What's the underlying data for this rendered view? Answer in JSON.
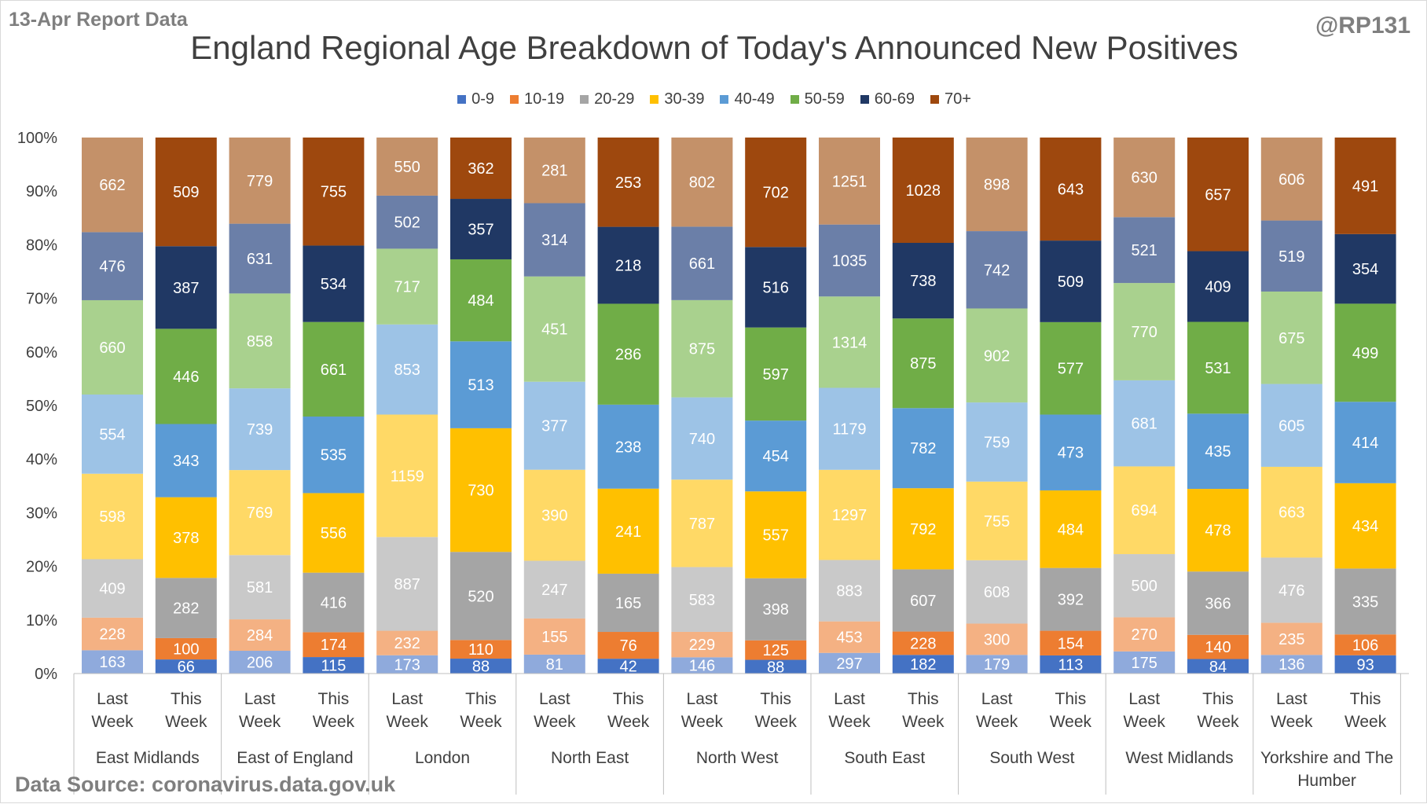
{
  "header": {
    "report_date": "13-Apr Report Data",
    "handle": "@RP131",
    "source": "Data Source: coronavirus.data.gov.uk"
  },
  "chart_data": {
    "type": "bar",
    "stacked": "percent",
    "title": "England Regional Age Breakdown of Today's Announced New Positives",
    "legend_position": "top",
    "y_ticks": [
      "0%",
      "10%",
      "20%",
      "30%",
      "40%",
      "50%",
      "60%",
      "70%",
      "80%",
      "90%",
      "100%"
    ],
    "ylim": [
      0,
      100
    ],
    "grid": false,
    "series": [
      {
        "name": "0-9",
        "color_this": "#4472c4",
        "color_last": "#8faadc"
      },
      {
        "name": "10-19",
        "color_this": "#ed7d31",
        "color_last": "#f4b183"
      },
      {
        "name": "20-29",
        "color_this": "#a5a5a5",
        "color_last": "#c9c9c9"
      },
      {
        "name": "30-39",
        "color_this": "#ffc000",
        "color_last": "#ffd966"
      },
      {
        "name": "40-49",
        "color_this": "#5b9bd5",
        "color_last": "#9dc3e6"
      },
      {
        "name": "50-59",
        "color_this": "#70ad47",
        "color_last": "#a9d18e"
      },
      {
        "name": "60-69",
        "color_this": "#203864",
        "color_last": "#6b7fa8"
      },
      {
        "name": "70+",
        "color_this": "#9e480e",
        "color_last": "#c49169"
      }
    ],
    "groups": [
      {
        "region": "East Midlands",
        "bars": [
          {
            "label": [
              "Last",
              "Week"
            ],
            "period": "last",
            "values": [
              163,
              228,
              409,
              598,
              554,
              660,
              476,
              662
            ]
          },
          {
            "label": [
              "This",
              "Week"
            ],
            "period": "this",
            "values": [
              66,
              100,
              282,
              378,
              343,
              446,
              387,
              509
            ]
          }
        ]
      },
      {
        "region": "East of England",
        "bars": [
          {
            "label": [
              "Last",
              "Week"
            ],
            "period": "last",
            "values": [
              206,
              284,
              581,
              769,
              739,
              858,
              631,
              779
            ]
          },
          {
            "label": [
              "This",
              "Week"
            ],
            "period": "this",
            "values": [
              115,
              174,
              416,
              556,
              535,
              661,
              534,
              755
            ]
          }
        ]
      },
      {
        "region": "London",
        "bars": [
          {
            "label": [
              "Last",
              "Week"
            ],
            "period": "last",
            "values": [
              173,
              232,
              887,
              1159,
              853,
              717,
              502,
              550
            ]
          },
          {
            "label": [
              "This",
              "Week"
            ],
            "period": "this",
            "values": [
              88,
              110,
              520,
              730,
              513,
              484,
              357,
              362
            ]
          }
        ]
      },
      {
        "region": "North East",
        "bars": [
          {
            "label": [
              "Last",
              "Week"
            ],
            "period": "last",
            "values": [
              81,
              155,
              247,
              390,
              377,
              451,
              314,
              281
            ]
          },
          {
            "label": [
              "This",
              "Week"
            ],
            "period": "this",
            "values": [
              42,
              76,
              165,
              241,
              238,
              286,
              218,
              253
            ]
          }
        ]
      },
      {
        "region": "North West",
        "bars": [
          {
            "label": [
              "Last",
              "Week"
            ],
            "period": "last",
            "values": [
              146,
              229,
              583,
              787,
              740,
              875,
              661,
              802
            ]
          },
          {
            "label": [
              "This",
              "Week"
            ],
            "period": "this",
            "values": [
              88,
              125,
              398,
              557,
              454,
              597,
              516,
              702
            ]
          }
        ]
      },
      {
        "region": "South East",
        "bars": [
          {
            "label": [
              "Last",
              "Week"
            ],
            "period": "last",
            "values": [
              297,
              453,
              883,
              1297,
              1179,
              1314,
              1035,
              1251
            ]
          },
          {
            "label": [
              "This",
              "Week"
            ],
            "period": "this",
            "values": [
              182,
              228,
              607,
              792,
              782,
              875,
              738,
              1028
            ]
          }
        ]
      },
      {
        "region": "South West",
        "bars": [
          {
            "label": [
              "Last",
              "Week"
            ],
            "period": "last",
            "values": [
              179,
              300,
              608,
              755,
              759,
              902,
              742,
              898
            ]
          },
          {
            "label": [
              "This",
              "Week"
            ],
            "period": "this",
            "values": [
              113,
              154,
              392,
              484,
              473,
              577,
              509,
              643
            ]
          }
        ]
      },
      {
        "region": "West Midlands",
        "bars": [
          {
            "label": [
              "Last",
              "Week"
            ],
            "period": "last",
            "values": [
              175,
              270,
              500,
              694,
              681,
              770,
              521,
              630
            ]
          },
          {
            "label": [
              "This",
              "Week"
            ],
            "period": "this",
            "values": [
              84,
              140,
              366,
              478,
              435,
              531,
              409,
              657
            ]
          }
        ]
      },
      {
        "region": "Yorkshire and The Humber",
        "bars": [
          {
            "label": [
              "Last",
              "Week"
            ],
            "period": "last",
            "values": [
              136,
              235,
              476,
              663,
              605,
              675,
              519,
              606
            ]
          },
          {
            "label": [
              "This",
              "Week"
            ],
            "period": "this",
            "values": [
              93,
              106,
              335,
              434,
              414,
              499,
              354,
              491
            ]
          }
        ]
      }
    ]
  }
}
